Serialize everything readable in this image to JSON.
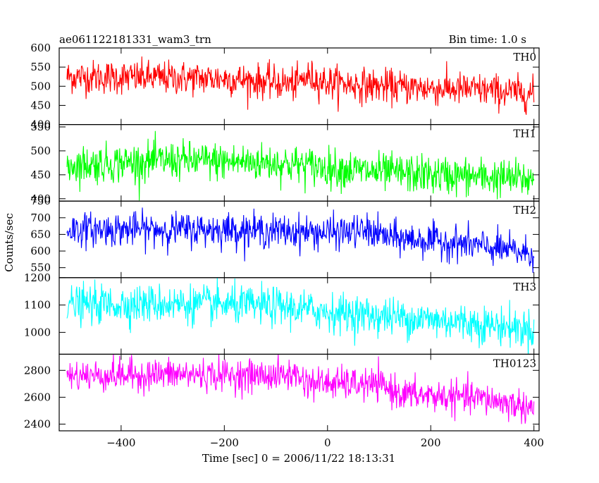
{
  "chart_data": {
    "type": "line",
    "title": "ae061122181331_wam3_trn",
    "bin_time_label": "Bin time: 1.0 s",
    "xlabel": "Time [sec] 0 = 2006/11/22 18:13:31",
    "ylabel": "Counts/sec",
    "xlim": [
      -520,
      410
    ],
    "x_ticks": [
      -400,
      -200,
      0,
      200,
      400
    ],
    "x_tick_labels": [
      "−400",
      "−200",
      "0",
      "200",
      "400"
    ],
    "x_range": [
      -505,
      400
    ],
    "n_points": 905,
    "grid": false,
    "panels": [
      {
        "name": "TH0",
        "color": "#ff0000",
        "ylim": [
          400,
          600
        ],
        "y_ticks": [
          450,
          500,
          550,
          600
        ],
        "y_tick_labels": [
          "450",
          "500",
          "550",
          "600"
        ],
        "y_bottom_label": "400",
        "level_start": 525,
        "level_end": 480,
        "noise": 22,
        "trend_knots": [
          [
            -505,
            525
          ],
          [
            -200,
            520
          ],
          [
            -60,
            505
          ],
          [
            -40,
            525
          ],
          [
            0,
            510
          ],
          [
            100,
            500
          ],
          [
            300,
            490
          ],
          [
            400,
            480
          ]
        ]
      },
      {
        "name": "TH1",
        "color": "#00ff00",
        "ylim": [
          395,
          555
        ],
        "y_ticks": [
          400,
          450,
          500,
          550
        ],
        "y_tick_labels": [
          "400",
          "450",
          "500",
          "550"
        ],
        "level_start": 470,
        "level_end": 440,
        "noise": 20,
        "trend_knots": [
          [
            -505,
            470
          ],
          [
            -300,
            480
          ],
          [
            -100,
            475
          ],
          [
            0,
            465
          ],
          [
            100,
            455
          ],
          [
            200,
            450
          ],
          [
            400,
            440
          ]
        ]
      },
      {
        "name": "TH2",
        "color": "#0000ff",
        "ylim": [
          520,
          750
        ],
        "y_ticks": [
          550,
          600,
          650,
          700,
          750
        ],
        "y_tick_labels": [
          "550",
          "600",
          "650",
          "700",
          "750"
        ],
        "level_start": 665,
        "level_end": 590,
        "noise": 25,
        "trend_knots": [
          [
            -505,
            665
          ],
          [
            -200,
            665
          ],
          [
            0,
            655
          ],
          [
            80,
            660
          ],
          [
            120,
            640
          ],
          [
            250,
            625
          ],
          [
            400,
            590
          ]
        ]
      },
      {
        "name": "TH3",
        "color": "#00ffff",
        "ylim": [
          920,
          1200
        ],
        "y_ticks": [
          1000,
          1100,
          1200
        ],
        "y_tick_labels": [
          "1000",
          "1100",
          "1200"
        ],
        "level_start": 1100,
        "level_end": 1010,
        "noise": 35,
        "trend_knots": [
          [
            -505,
            1100
          ],
          [
            -300,
            1105
          ],
          [
            -100,
            1095
          ],
          [
            0,
            1075
          ],
          [
            100,
            1060
          ],
          [
            250,
            1040
          ],
          [
            400,
            1010
          ]
        ]
      },
      {
        "name": "TH0123",
        "color": "#ff00ff",
        "ylim": [
          2350,
          2920
        ],
        "y_ticks": [
          2400,
          2600,
          2800
        ],
        "y_tick_labels": [
          "2400",
          "2600",
          "2800"
        ],
        "level_start": 2760,
        "level_end": 2520,
        "noise": 60,
        "trend_knots": [
          [
            -505,
            2760
          ],
          [
            -300,
            2770
          ],
          [
            -100,
            2760
          ],
          [
            -60,
            2770
          ],
          [
            -40,
            2710
          ],
          [
            100,
            2690
          ],
          [
            150,
            2620
          ],
          [
            300,
            2590
          ],
          [
            400,
            2520
          ]
        ]
      }
    ]
  }
}
